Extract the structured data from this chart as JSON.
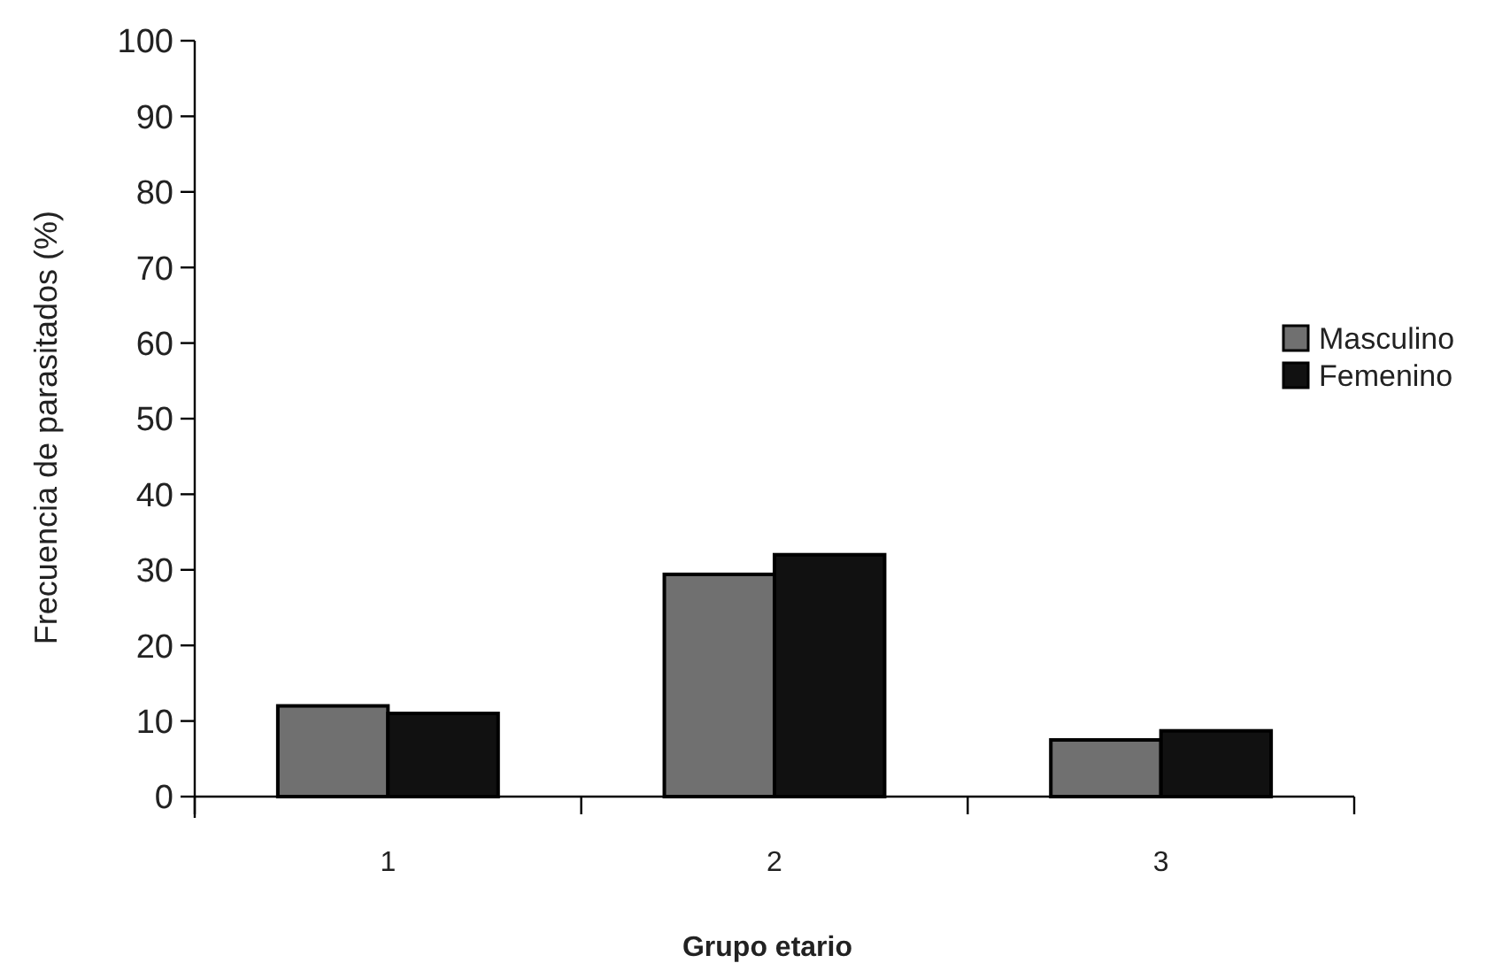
{
  "chart_data": {
    "type": "bar",
    "xlabel": "Grupo etario",
    "ylabel": "Frecuencia de parasitados (%)",
    "categories": [
      "1",
      "2",
      "3"
    ],
    "series": [
      {
        "name": "Masculino",
        "color": "#707070",
        "values": [
          12,
          29.4,
          7.5
        ]
      },
      {
        "name": "Femenino",
        "color": "#111111",
        "values": [
          11,
          32,
          8.7
        ]
      }
    ],
    "ylim": [
      0,
      100
    ],
    "yticks": [
      0,
      10,
      20,
      30,
      40,
      50,
      60,
      70,
      80,
      90,
      100
    ],
    "grid": false,
    "legend": "right"
  }
}
